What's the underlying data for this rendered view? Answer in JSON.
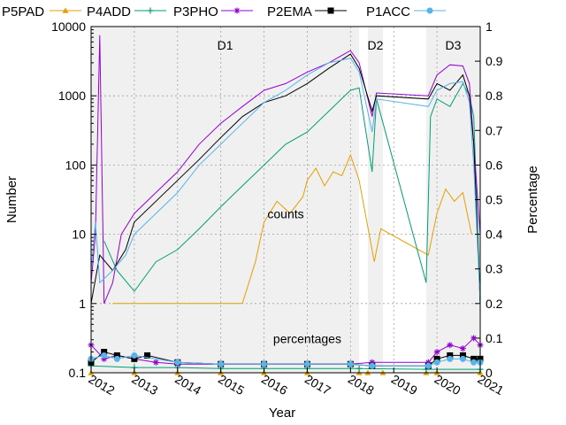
{
  "chart_data": {
    "type": "line",
    "xlabel": "Year",
    "ylabel": "Number",
    "y2label": "Percentage",
    "x_ticks": [
      "2012",
      "2013",
      "2014",
      "2015",
      "2016",
      "2017",
      "2018",
      "2019",
      "2020",
      "2021"
    ],
    "y_ticks": [
      {
        "value": 10000,
        "label": "10000"
      },
      {
        "value": 1000,
        "label": "1000"
      },
      {
        "value": 100,
        "label": "100"
      },
      {
        "value": 10,
        "label": "10"
      },
      {
        "value": 1,
        "label": "1"
      },
      {
        "value": 0.1,
        "label": "0.1"
      }
    ],
    "y2_ticks": [
      "0",
      "0.1",
      "0.2",
      "0.3",
      "0.4",
      "0.5",
      "0.6",
      "0.7",
      "0.8",
      "0.9",
      "1"
    ],
    "xlim": [
      2012,
      2021
    ],
    "ylim": [
      0.1,
      10000
    ],
    "y2lim": [
      0,
      1
    ],
    "yscale": "log",
    "grid": true,
    "legend_position": "top",
    "regions": [
      {
        "label": "D1",
        "start": 2012,
        "end": 2018.2
      },
      {
        "label": "D2",
        "start": 2018.4,
        "end": 2018.75
      },
      {
        "label": "D3",
        "start": 2019.75,
        "end": 2021
      }
    ],
    "annotations": [
      {
        "text": "counts",
        "x": 2016.5,
        "y": 17
      },
      {
        "text": "percentages",
        "x": 2017,
        "y": 0.27
      }
    ],
    "series": [
      {
        "name": "P5PAD",
        "color": "#e69f00",
        "marker": "triangle",
        "counts": [
          [
            2012.5,
            1
          ],
          [
            2013,
            1
          ],
          [
            2013.5,
            1
          ],
          [
            2014,
            1
          ],
          [
            2014.5,
            1
          ],
          [
            2015,
            1
          ],
          [
            2015.5,
            1
          ],
          [
            2015.8,
            4
          ],
          [
            2016,
            15
          ],
          [
            2016.3,
            30
          ],
          [
            2016.6,
            20
          ],
          [
            2016.9,
            35
          ],
          [
            2017,
            60
          ],
          [
            2017.2,
            90
          ],
          [
            2017.4,
            50
          ],
          [
            2017.6,
            80
          ],
          [
            2017.8,
            70
          ],
          [
            2018,
            140
          ],
          [
            2018.2,
            60
          ],
          [
            2018.55,
            4
          ],
          [
            2018.7,
            12
          ],
          [
            2019.8,
            5
          ],
          [
            2020,
            20
          ],
          [
            2020.2,
            45
          ],
          [
            2020.4,
            30
          ],
          [
            2020.6,
            40
          ],
          [
            2020.7,
            20
          ],
          [
            2020.8,
            10
          ]
        ],
        "pct": [
          [
            2012,
            0
          ],
          [
            2013,
            0
          ],
          [
            2014,
            0
          ],
          [
            2015,
            0
          ],
          [
            2016,
            0
          ],
          [
            2017,
            0
          ],
          [
            2018.2,
            0
          ],
          [
            2018.4,
            0
          ],
          [
            2018.75,
            0
          ],
          [
            2019.75,
            0
          ],
          [
            2020,
            0
          ],
          [
            2021,
            0
          ]
        ]
      },
      {
        "name": "P4ADD",
        "color": "#009e73",
        "marker": "plus",
        "counts": [
          [
            2012.3,
            8
          ],
          [
            2012.6,
            3
          ],
          [
            2013,
            1.5
          ],
          [
            2013.5,
            4
          ],
          [
            2014,
            6
          ],
          [
            2014.5,
            12
          ],
          [
            2015,
            25
          ],
          [
            2015.5,
            50
          ],
          [
            2016,
            100
          ],
          [
            2016.5,
            200
          ],
          [
            2017,
            300
          ],
          [
            2017.5,
            600
          ],
          [
            2018,
            1200
          ],
          [
            2018.2,
            1300
          ],
          [
            2018.5,
            80
          ],
          [
            2018.6,
            900
          ],
          [
            2019.75,
            2
          ],
          [
            2019.85,
            500
          ],
          [
            2020,
            900
          ],
          [
            2020.3,
            700
          ],
          [
            2020.6,
            1500
          ],
          [
            2020.75,
            1000
          ],
          [
            2020.85,
            500
          ],
          [
            2021,
            1
          ]
        ],
        "pct": [
          [
            2012,
            0.02
          ],
          [
            2013,
            0.015
          ],
          [
            2014,
            0.015
          ],
          [
            2015,
            0.012
          ],
          [
            2016,
            0.012
          ],
          [
            2017,
            0.012
          ],
          [
            2018.2,
            0.012
          ],
          [
            2019.75,
            0.01
          ],
          [
            2021,
            0.01
          ]
        ]
      },
      {
        "name": "P3PHO",
        "color": "#9400d3",
        "marker": "star",
        "counts": [
          [
            2012,
            2
          ],
          [
            2012.1,
            10
          ],
          [
            2012.2,
            7500
          ],
          [
            2012.3,
            1
          ],
          [
            2012.5,
            2
          ],
          [
            2012.7,
            10
          ],
          [
            2013,
            20
          ],
          [
            2013.5,
            40
          ],
          [
            2014,
            80
          ],
          [
            2014.5,
            200
          ],
          [
            2015,
            400
          ],
          [
            2015.5,
            700
          ],
          [
            2016,
            1200
          ],
          [
            2016.5,
            1500
          ],
          [
            2017,
            2200
          ],
          [
            2017.5,
            3000
          ],
          [
            2018,
            4500
          ],
          [
            2018.2,
            3000
          ],
          [
            2018.5,
            500
          ],
          [
            2018.6,
            1100
          ],
          [
            2019.8,
            1000
          ],
          [
            2020,
            2000
          ],
          [
            2020.3,
            2800
          ],
          [
            2020.6,
            2700
          ],
          [
            2020.75,
            1500
          ],
          [
            2020.85,
            200
          ],
          [
            2021,
            10
          ]
        ],
        "pct": [
          [
            2012,
            0.08
          ],
          [
            2012.3,
            0.04
          ],
          [
            2012.6,
            0.05
          ],
          [
            2013,
            0.04
          ],
          [
            2013.5,
            0.03
          ],
          [
            2014,
            0.025
          ],
          [
            2015,
            0.025
          ],
          [
            2016,
            0.025
          ],
          [
            2017,
            0.025
          ],
          [
            2018,
            0.025
          ],
          [
            2018.5,
            0.03
          ],
          [
            2019.8,
            0.03
          ],
          [
            2020,
            0.06
          ],
          [
            2020.3,
            0.08
          ],
          [
            2020.6,
            0.07
          ],
          [
            2020.85,
            0.1
          ],
          [
            2021,
            0.08
          ]
        ]
      },
      {
        "name": "P2EMA",
        "color": "#000000",
        "marker": "square",
        "counts": [
          [
            2012,
            1
          ],
          [
            2012.2,
            5
          ],
          [
            2012.5,
            3
          ],
          [
            2012.8,
            6
          ],
          [
            2013,
            15
          ],
          [
            2013.5,
            30
          ],
          [
            2014,
            60
          ],
          [
            2014.5,
            120
          ],
          [
            2015,
            250
          ],
          [
            2015.5,
            500
          ],
          [
            2016,
            800
          ],
          [
            2016.5,
            1000
          ],
          [
            2017,
            1500
          ],
          [
            2017.5,
            2500
          ],
          [
            2018,
            4000
          ],
          [
            2018.2,
            2500
          ],
          [
            2018.5,
            600
          ],
          [
            2018.6,
            1000
          ],
          [
            2019.8,
            900
          ],
          [
            2020,
            1500
          ],
          [
            2020.3,
            1200
          ],
          [
            2020.6,
            2000
          ],
          [
            2020.75,
            1000
          ],
          [
            2020.85,
            200
          ],
          [
            2021,
            1
          ]
        ],
        "pct": [
          [
            2012,
            0.03
          ],
          [
            2012.3,
            0.06
          ],
          [
            2012.6,
            0.05
          ],
          [
            2013,
            0.04
          ],
          [
            2013.3,
            0.05
          ],
          [
            2014,
            0.03
          ],
          [
            2015,
            0.025
          ],
          [
            2016,
            0.025
          ],
          [
            2017,
            0.025
          ],
          [
            2018,
            0.025
          ],
          [
            2018.5,
            0.02
          ],
          [
            2019.8,
            0.02
          ],
          [
            2020,
            0.04
          ],
          [
            2020.3,
            0.05
          ],
          [
            2020.6,
            0.05
          ],
          [
            2020.85,
            0.04
          ],
          [
            2021,
            0.04
          ]
        ]
      },
      {
        "name": "P1ACC",
        "color": "#56b4e9",
        "marker": "circle",
        "counts": [
          [
            2012,
            3
          ],
          [
            2012.1,
            15
          ],
          [
            2012.2,
            2
          ],
          [
            2012.5,
            3
          ],
          [
            2012.8,
            5
          ],
          [
            2013,
            10
          ],
          [
            2013.5,
            20
          ],
          [
            2014,
            40
          ],
          [
            2014.5,
            100
          ],
          [
            2015,
            200
          ],
          [
            2015.5,
            400
          ],
          [
            2016,
            800
          ],
          [
            2016.5,
            1200
          ],
          [
            2017,
            2000
          ],
          [
            2017.5,
            3000
          ],
          [
            2018,
            3500
          ],
          [
            2018.2,
            2200
          ],
          [
            2018.5,
            300
          ],
          [
            2018.6,
            900
          ],
          [
            2019.8,
            700
          ],
          [
            2020,
            1200
          ],
          [
            2020.3,
            1500
          ],
          [
            2020.6,
            1600
          ],
          [
            2020.75,
            800
          ],
          [
            2020.85,
            100
          ],
          [
            2021,
            1
          ]
        ],
        "pct": [
          [
            2012,
            0.04
          ],
          [
            2012.3,
            0.05
          ],
          [
            2012.6,
            0.04
          ],
          [
            2013,
            0.05
          ],
          [
            2014,
            0.03
          ],
          [
            2015,
            0.025
          ],
          [
            2016,
            0.025
          ],
          [
            2017,
            0.025
          ],
          [
            2018,
            0.025
          ],
          [
            2018.5,
            0.02
          ],
          [
            2019.8,
            0.02
          ],
          [
            2020,
            0.03
          ],
          [
            2020.3,
            0.04
          ],
          [
            2020.6,
            0.04
          ],
          [
            2020.85,
            0.03
          ],
          [
            2021,
            0.03
          ]
        ]
      }
    ]
  }
}
